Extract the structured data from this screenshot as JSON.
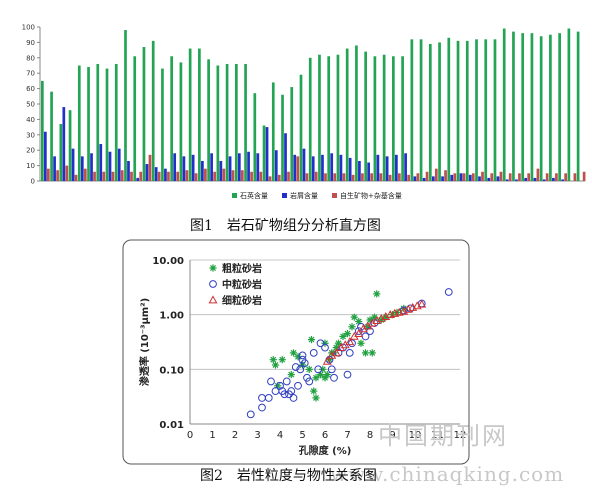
{
  "captions": {
    "figure1": "图1　岩石矿物组分分析直方图",
    "figure2": "图2　岩性粒度与物性关系图"
  },
  "watermarks": {
    "line1": "中国期刊网",
    "line2": "www.chinaqking.com"
  },
  "chart_data": [
    {
      "type": "bar",
      "ylim": [
        0,
        100
      ],
      "yticks": [
        0,
        10,
        20,
        30,
        40,
        50,
        60,
        70,
        80,
        90,
        100
      ],
      "legend_position": "bottom",
      "grid": false,
      "series": [
        {
          "name": "石英含量",
          "color": "#23a455",
          "values": [
            65,
            58,
            37,
            46,
            75,
            74,
            76,
            73,
            76,
            98,
            81,
            87,
            91,
            73,
            81,
            77,
            86,
            86,
            79,
            75,
            76,
            76,
            76,
            57,
            36,
            64,
            56,
            61,
            69,
            80,
            82,
            81,
            82,
            86,
            88,
            84,
            81,
            82,
            81,
            81,
            92,
            92,
            89,
            90,
            93,
            91,
            91,
            92,
            92,
            92,
            99,
            97,
            96,
            96,
            94,
            95,
            96,
            99,
            97
          ]
        },
        {
          "name": "岩屑含量",
          "color": "#2030c8",
          "values": [
            32,
            16,
            48,
            21,
            16,
            18,
            24,
            19,
            21,
            13,
            2,
            11,
            9,
            8,
            18,
            16,
            17,
            13,
            18,
            13,
            16,
            18,
            19,
            18,
            35,
            20,
            31,
            17,
            21,
            16,
            17,
            18,
            17,
            15,
            13,
            12,
            17,
            16,
            17,
            18,
            3,
            2,
            3,
            3,
            4,
            5,
            4,
            3,
            2,
            3,
            1,
            1,
            2,
            2,
            1,
            2,
            1,
            0,
            0
          ]
        },
        {
          "name": "自生矿物+杂基含量",
          "color": "#c0504d",
          "values": [
            8,
            7,
            10,
            4,
            8,
            6,
            6,
            6,
            7,
            6,
            6,
            17,
            6,
            6,
            6,
            7,
            5,
            8,
            6,
            8,
            7,
            7,
            6,
            6,
            3,
            4,
            6,
            16,
            5,
            6,
            5,
            5,
            5,
            4,
            5,
            5,
            5,
            4,
            5,
            4,
            5,
            6,
            8,
            7,
            5,
            5,
            5,
            6,
            5,
            6,
            5,
            5,
            5,
            8,
            5,
            5,
            5,
            5,
            6
          ]
        }
      ]
    },
    {
      "type": "scatter",
      "x_scale": "linear",
      "y_scale": "log",
      "xlabel": "孔隙度 (%)",
      "ylabel": "渗透率 (10⁻³μm²)",
      "xlim": [
        0,
        12
      ],
      "ylim": [
        0.01,
        10
      ],
      "xticks": [
        0,
        1,
        2,
        3,
        4,
        5,
        6,
        7,
        8,
        9,
        10,
        11,
        12
      ],
      "yticks": [
        "0.01",
        "0.10",
        "1.00",
        "10.00"
      ],
      "grid": "horizontal",
      "legend_position": "top-left",
      "series": [
        {
          "name": "粗粒砂岩",
          "marker": "star",
          "color": "#20a040",
          "points": [
            [
              3.7,
              0.15
            ],
            [
              3.8,
              0.12
            ],
            [
              3.9,
              0.05
            ],
            [
              4.1,
              0.15
            ],
            [
              4.6,
              0.2
            ],
            [
              4.8,
              0.17
            ],
            [
              5.0,
              0.12
            ],
            [
              5.3,
              0.1
            ],
            [
              5.5,
              0.04
            ],
            [
              5.6,
              0.03
            ],
            [
              5.6,
              0.07
            ],
            [
              5.8,
              0.08
            ],
            [
              5.9,
              0.1
            ],
            [
              6.0,
              0.07
            ],
            [
              6.1,
              0.08
            ],
            [
              6.2,
              0.15
            ],
            [
              6.0,
              0.3
            ],
            [
              6.3,
              0.2
            ],
            [
              6.4,
              0.2
            ],
            [
              6.5,
              0.25
            ],
            [
              6.6,
              0.3
            ],
            [
              6.8,
              0.4
            ],
            [
              7.0,
              0.45
            ],
            [
              7.2,
              0.6
            ],
            [
              7.3,
              0.9
            ],
            [
              7.5,
              0.75
            ],
            [
              7.6,
              0.3
            ],
            [
              7.8,
              0.2
            ],
            [
              7.9,
              0.6
            ],
            [
              8.0,
              0.8
            ],
            [
              8.1,
              0.2
            ],
            [
              8.2,
              0.9
            ],
            [
              8.3,
              2.4
            ],
            [
              8.5,
              0.8
            ],
            [
              8.7,
              0.9
            ],
            [
              9.0,
              1.0
            ],
            [
              9.2,
              1.1
            ],
            [
              9.5,
              1.3
            ],
            [
              5.4,
              0.35
            ],
            [
              4.5,
              0.08
            ]
          ]
        },
        {
          "name": "中粒砂岩",
          "marker": "circle",
          "color": "#3040c0",
          "points": [
            [
              2.7,
              0.015
            ],
            [
              3.2,
              0.02
            ],
            [
              3.2,
              0.03
            ],
            [
              3.5,
              0.03
            ],
            [
              3.6,
              0.06
            ],
            [
              3.8,
              0.04
            ],
            [
              4.0,
              0.05
            ],
            [
              4.1,
              0.04
            ],
            [
              4.2,
              0.035
            ],
            [
              4.3,
              0.06
            ],
            [
              4.4,
              0.035
            ],
            [
              4.5,
              0.04
            ],
            [
              4.6,
              0.03
            ],
            [
              4.8,
              0.05
            ],
            [
              4.9,
              0.1
            ],
            [
              5.0,
              0.15
            ],
            [
              5.0,
              0.18
            ],
            [
              5.1,
              0.13
            ],
            [
              5.2,
              0.07
            ],
            [
              5.3,
              0.06
            ],
            [
              5.5,
              0.2
            ],
            [
              5.8,
              0.3
            ],
            [
              6.0,
              0.25
            ],
            [
              6.2,
              0.15
            ],
            [
              6.3,
              0.1
            ],
            [
              6.4,
              0.07
            ],
            [
              6.6,
              0.2
            ],
            [
              6.8,
              0.25
            ],
            [
              7.0,
              0.08
            ],
            [
              7.1,
              0.2
            ],
            [
              7.2,
              0.3
            ],
            [
              7.5,
              0.5
            ],
            [
              7.6,
              0.6
            ],
            [
              7.8,
              0.4
            ],
            [
              8.0,
              0.5
            ],
            [
              8.2,
              0.7
            ],
            [
              9.5,
              1.2
            ],
            [
              9.8,
              1.3
            ],
            [
              10.3,
              1.6
            ],
            [
              11.5,
              2.6
            ],
            [
              5.7,
              0.1
            ],
            [
              4.7,
              0.11
            ]
          ]
        },
        {
          "name": "细粒砂岩",
          "marker": "triangle",
          "color": "#d03030",
          "points": [
            [
              6.1,
              0.14
            ],
            [
              6.3,
              0.18
            ],
            [
              6.5,
              0.2
            ],
            [
              6.7,
              0.25
            ],
            [
              6.9,
              0.28
            ],
            [
              7.1,
              0.32
            ],
            [
              7.3,
              0.4
            ],
            [
              7.5,
              0.45
            ],
            [
              7.7,
              0.55
            ],
            [
              7.9,
              0.62
            ],
            [
              8.1,
              0.7
            ],
            [
              8.3,
              0.78
            ],
            [
              8.5,
              0.85
            ],
            [
              8.7,
              0.92
            ],
            [
              8.9,
              1.0
            ],
            [
              9.1,
              1.05
            ],
            [
              9.3,
              1.1
            ],
            [
              9.5,
              1.15
            ],
            [
              9.7,
              1.25
            ],
            [
              9.9,
              1.35
            ],
            [
              10.1,
              1.45
            ],
            [
              10.3,
              1.55
            ]
          ]
        }
      ]
    }
  ]
}
